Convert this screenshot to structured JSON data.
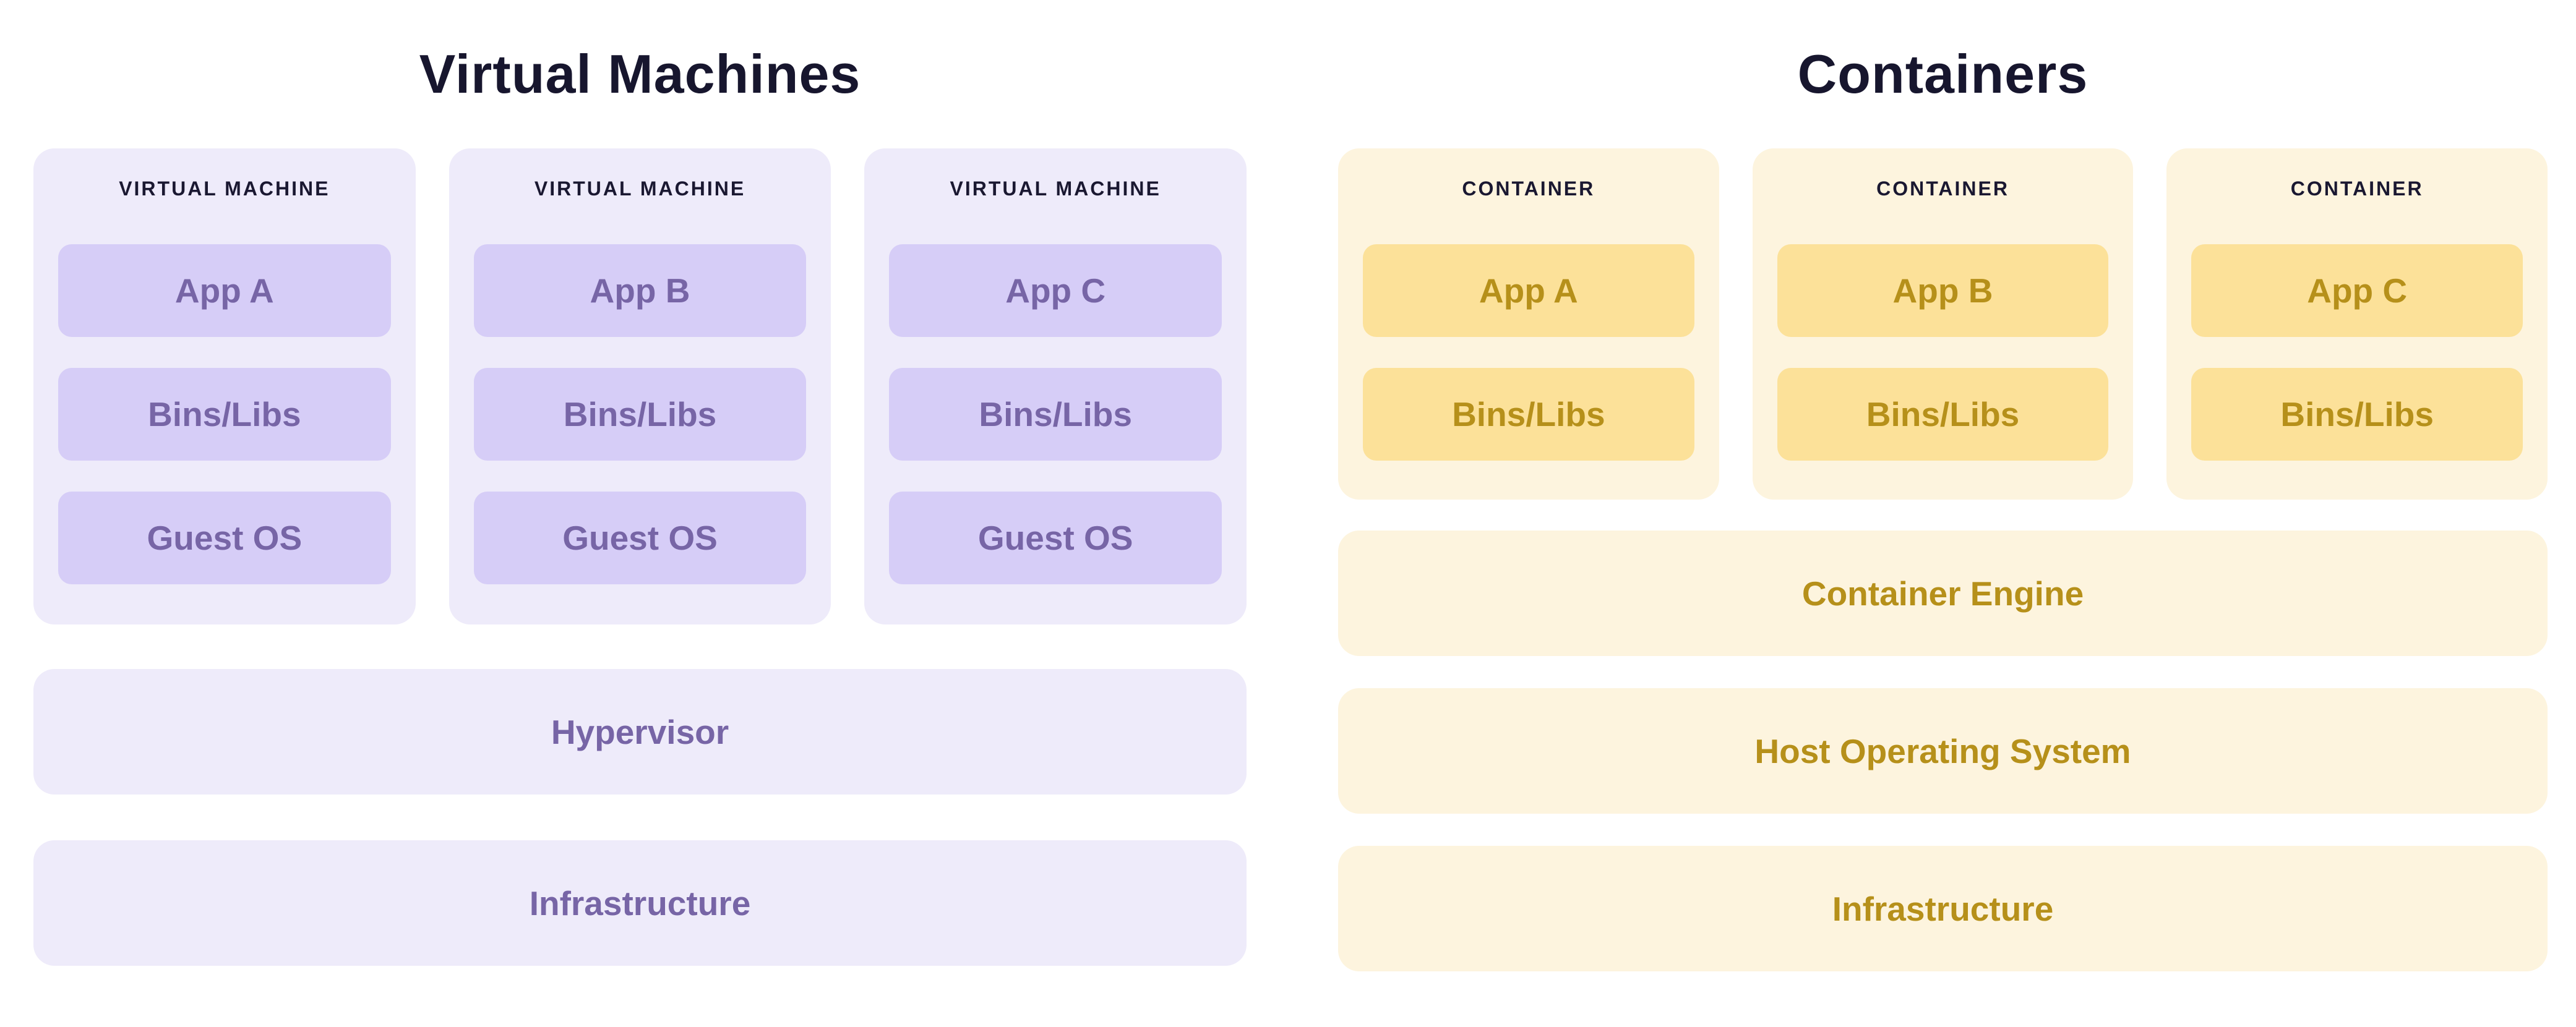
{
  "colors": {
    "page_background": "#ffffff",
    "title_text": "#17162e",
    "card_header_text": "#1a1831",
    "vm_card_bg": "#eeebfa",
    "vm_block_bg": "#d6cdf7",
    "vm_text": "#7765a6",
    "container_card_bg": "#fdf4de",
    "container_block_bg": "#fce199",
    "container_text": "#b6901a"
  },
  "sections": {
    "vm": {
      "title": "Virtual Machines",
      "card_label": "VIRTUAL MACHINE",
      "cards": [
        {
          "blocks": [
            "App A",
            "Bins/Libs",
            "Guest OS"
          ]
        },
        {
          "blocks": [
            "App B",
            "Bins/Libs",
            "Guest OS"
          ]
        },
        {
          "blocks": [
            "App C",
            "Bins/Libs",
            "Guest OS"
          ]
        }
      ],
      "bars": [
        "Hypervisor",
        "Infrastructure"
      ]
    },
    "containers": {
      "title": "Containers",
      "card_label": "CONTAINER",
      "cards": [
        {
          "blocks": [
            "App A",
            "Bins/Libs"
          ]
        },
        {
          "blocks": [
            "App B",
            "Bins/Libs"
          ]
        },
        {
          "blocks": [
            "App C",
            "Bins/Libs"
          ]
        }
      ],
      "bars": [
        "Container Engine",
        "Host Operating System",
        "Infrastructure"
      ]
    }
  }
}
